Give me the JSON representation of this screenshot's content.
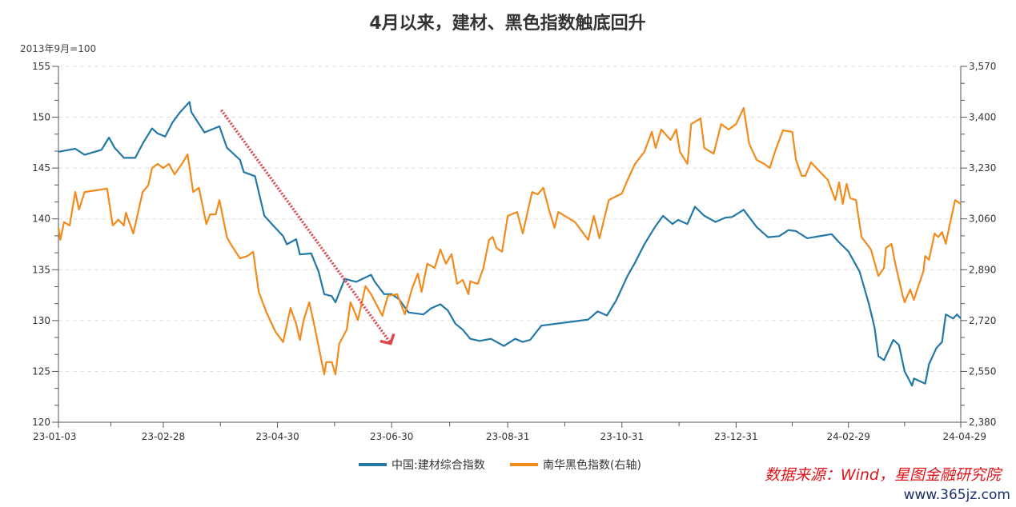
{
  "chart_data": {
    "type": "line",
    "title": "4月以来，建材、黑色指数触底回升",
    "left_axis_unit": "2013年9月=100",
    "ylim_left": [
      120,
      155
    ],
    "yticks_left": [
      120,
      125,
      130,
      135,
      140,
      145,
      150,
      155
    ],
    "ylim_right": [
      2380,
      3570
    ],
    "yticks_right": [
      "2,380",
      "2,550",
      "2,720",
      "2,890",
      "3,060",
      "3,230",
      "3,400",
      "3,570"
    ],
    "yticks_right_values": [
      2380,
      2550,
      2720,
      2890,
      3060,
      3230,
      3400,
      3570
    ],
    "xlim": [
      "2023-01-03",
      "2024-04-29"
    ],
    "xticks": [
      "23-01-03",
      "23-02-28",
      "23-04-30",
      "23-06-30",
      "23-08-31",
      "23-10-31",
      "23-12-31",
      "24-02-29",
      "24-04-29"
    ],
    "xtick_dates": [
      "2023-01-03",
      "2023-02-28",
      "2023-04-30",
      "2023-06-30",
      "2023-08-31",
      "2023-10-31",
      "2023-12-31",
      "2024-02-29",
      "2024-04-29"
    ],
    "grid": "horizontal dashed",
    "legend_position": "bottom",
    "series": [
      {
        "name": "中国:建材综合指数",
        "axis": "left",
        "color": "#2378a5",
        "points": [
          [
            "2023-01-03",
            146.6
          ],
          [
            "2023-01-12",
            146.9
          ],
          [
            "2023-01-17",
            146.3
          ],
          [
            "2023-01-26",
            146.8
          ],
          [
            "2023-01-30",
            148.0
          ],
          [
            "2023-02-02",
            147.0
          ],
          [
            "2023-02-07",
            146.0
          ],
          [
            "2023-02-13",
            146.0
          ],
          [
            "2023-02-17",
            147.4
          ],
          [
            "2023-02-22",
            148.9
          ],
          [
            "2023-02-25",
            148.4
          ],
          [
            "2023-03-01",
            148.1
          ],
          [
            "2023-03-05",
            149.5
          ],
          [
            "2023-03-09",
            150.5
          ],
          [
            "2023-03-14",
            151.5
          ],
          [
            "2023-03-15",
            150.5
          ],
          [
            "2023-03-22",
            148.5
          ],
          [
            "2023-03-30",
            149.1
          ],
          [
            "2023-04-03",
            147.0
          ],
          [
            "2023-04-10",
            145.8
          ],
          [
            "2023-04-12",
            144.6
          ],
          [
            "2023-04-18",
            144.2
          ],
          [
            "2023-04-23",
            140.3
          ],
          [
            "2023-04-29",
            139.1
          ],
          [
            "2023-05-03",
            138.3
          ],
          [
            "2023-05-05",
            137.5
          ],
          [
            "2023-05-10",
            138.0
          ],
          [
            "2023-05-12",
            136.5
          ],
          [
            "2023-05-18",
            136.6
          ],
          [
            "2023-05-22",
            134.8
          ],
          [
            "2023-05-25",
            132.6
          ],
          [
            "2023-05-29",
            132.4
          ],
          [
            "2023-05-31",
            131.8
          ],
          [
            "2023-06-05",
            134.1
          ],
          [
            "2023-06-11",
            133.8
          ],
          [
            "2023-06-19",
            134.5
          ],
          [
            "2023-06-21",
            133.8
          ],
          [
            "2023-06-26",
            132.6
          ],
          [
            "2023-06-30",
            132.6
          ],
          [
            "2023-07-04",
            132.1
          ],
          [
            "2023-07-09",
            130.8
          ],
          [
            "2023-07-17",
            130.6
          ],
          [
            "2023-07-21",
            131.2
          ],
          [
            "2023-07-26",
            131.6
          ],
          [
            "2023-07-30",
            131.0
          ],
          [
            "2023-08-03",
            129.7
          ],
          [
            "2023-08-07",
            129.1
          ],
          [
            "2023-08-11",
            128.2
          ],
          [
            "2023-08-16",
            128.0
          ],
          [
            "2023-08-22",
            128.2
          ],
          [
            "2023-08-29",
            127.5
          ],
          [
            "2023-09-04",
            128.2
          ],
          [
            "2023-09-08",
            127.9
          ],
          [
            "2023-09-12",
            128.1
          ],
          [
            "2023-09-18",
            129.5
          ],
          [
            "2023-10-13",
            130.1
          ],
          [
            "2023-10-18",
            130.9
          ],
          [
            "2023-10-23",
            130.5
          ],
          [
            "2023-10-28",
            132.0
          ],
          [
            "2023-11-03",
            134.4
          ],
          [
            "2023-11-07",
            135.7
          ],
          [
            "2023-11-12",
            137.5
          ],
          [
            "2023-11-16",
            138.7
          ],
          [
            "2023-11-18",
            139.3
          ],
          [
            "2023-11-22",
            140.3
          ],
          [
            "2023-11-27",
            139.5
          ],
          [
            "2023-11-30",
            139.9
          ],
          [
            "2023-12-05",
            139.5
          ],
          [
            "2023-12-09",
            141.2
          ],
          [
            "2023-12-14",
            140.3
          ],
          [
            "2023-12-20",
            139.7
          ],
          [
            "2023-12-25",
            140.1
          ],
          [
            "2023-12-29",
            140.2
          ],
          [
            "2024-01-04",
            140.9
          ],
          [
            "2024-01-11",
            139.2
          ],
          [
            "2024-01-17",
            138.2
          ],
          [
            "2024-01-23",
            138.3
          ],
          [
            "2024-01-28",
            138.9
          ],
          [
            "2024-02-01",
            138.8
          ],
          [
            "2024-02-07",
            138.1
          ],
          [
            "2024-02-20",
            138.5
          ],
          [
            "2024-02-24",
            137.7
          ],
          [
            "2024-02-29",
            136.8
          ],
          [
            "2024-03-06",
            134.8
          ],
          [
            "2024-03-11",
            131.6
          ],
          [
            "2024-03-14",
            129.3
          ],
          [
            "2024-03-16",
            126.5
          ],
          [
            "2024-03-19",
            126.1
          ],
          [
            "2024-03-24",
            128.1
          ],
          [
            "2024-03-27",
            127.6
          ],
          [
            "2024-03-30",
            125.0
          ],
          [
            "2024-04-03",
            123.6
          ],
          [
            "2024-04-04",
            124.3
          ],
          [
            "2024-04-10",
            123.8
          ],
          [
            "2024-04-12",
            125.7
          ],
          [
            "2024-04-16",
            127.3
          ],
          [
            "2024-04-19",
            127.9
          ],
          [
            "2024-04-21",
            130.6
          ],
          [
            "2024-04-25",
            130.2
          ],
          [
            "2024-04-27",
            130.6
          ],
          [
            "2024-04-29",
            130.2
          ]
        ]
      },
      {
        "name": "南华黑色指数(右轴)",
        "axis": "right",
        "color": "#f28a1c",
        "points": [
          [
            "2023-01-03",
            3030
          ],
          [
            "2023-01-04",
            2990
          ],
          [
            "2023-01-06",
            3049
          ],
          [
            "2023-01-09",
            3038
          ],
          [
            "2023-01-12",
            3150
          ],
          [
            "2023-01-14",
            3091
          ],
          [
            "2023-01-17",
            3150
          ],
          [
            "2023-01-29",
            3161
          ],
          [
            "2023-02-01",
            3038
          ],
          [
            "2023-02-04",
            3057
          ],
          [
            "2023-02-07",
            3038
          ],
          [
            "2023-02-08",
            3081
          ],
          [
            "2023-02-12",
            3011
          ],
          [
            "2023-02-17",
            3150
          ],
          [
            "2023-02-20",
            3172
          ],
          [
            "2023-02-22",
            3230
          ],
          [
            "2023-02-25",
            3244
          ],
          [
            "2023-02-28",
            3230
          ],
          [
            "2023-03-03",
            3244
          ],
          [
            "2023-03-06",
            3209
          ],
          [
            "2023-03-10",
            3244
          ],
          [
            "2023-03-13",
            3276
          ],
          [
            "2023-03-16",
            3150
          ],
          [
            "2023-03-19",
            3164
          ],
          [
            "2023-03-23",
            3043
          ],
          [
            "2023-03-25",
            3075
          ],
          [
            "2023-03-28",
            3075
          ],
          [
            "2023-03-30",
            3123
          ],
          [
            "2023-04-03",
            2999
          ],
          [
            "2023-04-05",
            2976
          ],
          [
            "2023-04-10",
            2928
          ],
          [
            "2023-04-14",
            2936
          ],
          [
            "2023-04-17",
            2950
          ],
          [
            "2023-04-20",
            2816
          ],
          [
            "2023-04-24",
            2749
          ],
          [
            "2023-04-29",
            2682
          ],
          [
            "2023-05-03",
            2648
          ],
          [
            "2023-05-07",
            2762
          ],
          [
            "2023-05-10",
            2709
          ],
          [
            "2023-05-12",
            2655
          ],
          [
            "2023-05-14",
            2722
          ],
          [
            "2023-05-17",
            2781
          ],
          [
            "2023-05-20",
            2695
          ],
          [
            "2023-05-25",
            2540
          ],
          [
            "2023-05-26",
            2581
          ],
          [
            "2023-05-29",
            2581
          ],
          [
            "2023-05-31",
            2540
          ],
          [
            "2023-06-02",
            2642
          ],
          [
            "2023-06-06",
            2690
          ],
          [
            "2023-06-08",
            2781
          ],
          [
            "2023-06-12",
            2722
          ],
          [
            "2023-06-16",
            2835
          ],
          [
            "2023-06-19",
            2808
          ],
          [
            "2023-06-25",
            2736
          ],
          [
            "2023-06-28",
            2803
          ],
          [
            "2023-07-03",
            2808
          ],
          [
            "2023-07-07",
            2741
          ],
          [
            "2023-07-11",
            2829
          ],
          [
            "2023-07-14",
            2877
          ],
          [
            "2023-07-16",
            2816
          ],
          [
            "2023-07-19",
            2910
          ],
          [
            "2023-07-23",
            2896
          ],
          [
            "2023-07-26",
            2958
          ],
          [
            "2023-07-29",
            2910
          ],
          [
            "2023-08-01",
            2942
          ],
          [
            "2023-08-04",
            2843
          ],
          [
            "2023-08-07",
            2856
          ],
          [
            "2023-08-10",
            2808
          ],
          [
            "2023-08-11",
            2851
          ],
          [
            "2023-08-15",
            2843
          ],
          [
            "2023-08-18",
            2896
          ],
          [
            "2023-08-21",
            2990
          ],
          [
            "2023-08-23",
            3000
          ],
          [
            "2023-08-25",
            2963
          ],
          [
            "2023-08-28",
            2950
          ],
          [
            "2023-08-31",
            3070
          ],
          [
            "2023-09-05",
            3083
          ],
          [
            "2023-09-08",
            3011
          ],
          [
            "2023-09-13",
            3150
          ],
          [
            "2023-09-16",
            3142
          ],
          [
            "2023-09-19",
            3164
          ],
          [
            "2023-09-22",
            3091
          ],
          [
            "2023-09-25",
            3030
          ],
          [
            "2023-09-27",
            3083
          ],
          [
            "2023-10-06",
            3049
          ],
          [
            "2023-10-13",
            2990
          ],
          [
            "2023-10-16",
            3070
          ],
          [
            "2023-10-19",
            2995
          ],
          [
            "2023-10-24",
            3123
          ],
          [
            "2023-10-31",
            3145
          ],
          [
            "2023-11-03",
            3190
          ],
          [
            "2023-11-07",
            3244
          ],
          [
            "2023-11-12",
            3284
          ],
          [
            "2023-11-16",
            3351
          ],
          [
            "2023-11-18",
            3297
          ],
          [
            "2023-11-21",
            3359
          ],
          [
            "2023-11-26",
            3324
          ],
          [
            "2023-11-29",
            3359
          ],
          [
            "2023-12-01",
            3284
          ],
          [
            "2023-12-05",
            3244
          ],
          [
            "2023-12-07",
            3377
          ],
          [
            "2023-12-12",
            3396
          ],
          [
            "2023-12-14",
            3297
          ],
          [
            "2023-12-19",
            3278
          ],
          [
            "2023-12-23",
            3377
          ],
          [
            "2023-12-27",
            3359
          ],
          [
            "2023-12-31",
            3377
          ],
          [
            "2024-01-04",
            3431
          ],
          [
            "2024-01-07",
            3311
          ],
          [
            "2024-01-11",
            3257
          ],
          [
            "2024-01-15",
            3244
          ],
          [
            "2024-01-18",
            3230
          ],
          [
            "2024-01-21",
            3289
          ],
          [
            "2024-01-25",
            3356
          ],
          [
            "2024-01-30",
            3351
          ],
          [
            "2024-02-01",
            3257
          ],
          [
            "2024-02-04",
            3204
          ],
          [
            "2024-02-06",
            3204
          ],
          [
            "2024-02-09",
            3249
          ],
          [
            "2024-02-18",
            3190
          ],
          [
            "2024-02-22",
            3123
          ],
          [
            "2024-02-24",
            3182
          ],
          [
            "2024-02-26",
            3110
          ],
          [
            "2024-02-28",
            3177
          ],
          [
            "2024-03-01",
            3129
          ],
          [
            "2024-03-04",
            3123
          ],
          [
            "2024-03-07",
            2999
          ],
          [
            "2024-03-12",
            2958
          ],
          [
            "2024-03-16",
            2869
          ],
          [
            "2024-03-19",
            2896
          ],
          [
            "2024-03-20",
            2963
          ],
          [
            "2024-03-23",
            2976
          ],
          [
            "2024-03-25",
            2910
          ],
          [
            "2024-03-29",
            2803
          ],
          [
            "2024-03-30",
            2781
          ],
          [
            "2024-04-02",
            2824
          ],
          [
            "2024-04-04",
            2789
          ],
          [
            "2024-04-06",
            2829
          ],
          [
            "2024-04-09",
            2883
          ],
          [
            "2024-04-10",
            2936
          ],
          [
            "2024-04-12",
            2923
          ],
          [
            "2024-04-15",
            3011
          ],
          [
            "2024-04-17",
            2999
          ],
          [
            "2024-04-19",
            3016
          ],
          [
            "2024-04-21",
            2977
          ],
          [
            "2024-04-23",
            3038
          ],
          [
            "2024-04-26",
            3123
          ],
          [
            "2024-04-29",
            3110
          ]
        ]
      }
    ],
    "annotation_arrow": {
      "color": "#e0474c",
      "style": "dotted",
      "from": [
        "2023-03-31",
        150.7
      ],
      "to": [
        "2023-06-29",
        127.9
      ]
    },
    "source": "数据来源：Wind，星图金融研究院",
    "source_color": "#e0151b"
  },
  "watermark": "www.365jz.com"
}
